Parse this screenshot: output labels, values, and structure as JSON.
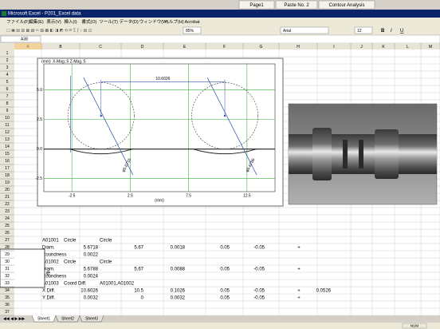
{
  "app_tabs": [
    "Page1",
    "Paste No. 2",
    "Contour Analysis"
  ],
  "window_title": "Microsoft Excel - P201_Excel data",
  "menu": [
    "ファイル(F)",
    "編集(E)",
    "表示(V)",
    "挿入(I)",
    "書式(O)",
    "ツール(T)",
    "データ(D)",
    "ウィンドウ(W)",
    "ヘルプ(H)",
    "Acrobat"
  ],
  "toolbar": {
    "zoom": "85%",
    "font": "Arial",
    "size": "12",
    "bold": "B",
    "italic": "I",
    "underline": "U"
  },
  "name_box": "A38",
  "columns": [
    "A",
    "B",
    "C",
    "D",
    "E",
    "F",
    "G",
    "H",
    "I",
    "J",
    "K",
    "L",
    "M"
  ],
  "row_numbers": [
    1,
    2,
    3,
    4,
    5,
    6,
    7,
    8,
    9,
    10,
    11,
    12,
    13,
    14,
    15,
    16,
    17,
    18,
    19,
    20,
    21,
    22,
    23,
    24,
    25,
    26,
    27,
    28,
    29,
    30,
    31,
    32,
    33,
    34,
    35,
    36,
    37
  ],
  "chart": {
    "unit_top": "(mm)",
    "magnification": "X-Mag.:5  Z-Mag.:5",
    "xlim": [
      -4.9,
      14.9
    ],
    "ylim": [
      -3.6,
      7.2
    ],
    "xticks": [
      {
        "value": -2.5,
        "label": "-2.5"
      },
      {
        "value": 2.5,
        "label": "2.5"
      },
      {
        "value": 7.5,
        "label": "7.5"
      },
      {
        "value": 12.5,
        "label": "12.5"
      }
    ],
    "yticks": [
      {
        "value": 5,
        "label": "5.0"
      },
      {
        "value": 2.5,
        "label": "2.5"
      },
      {
        "value": 0,
        "label": "0.0"
      },
      {
        "value": -2.5,
        "label": "-2.5"
      }
    ],
    "x_label": "(mm)",
    "dimension": "10.6026",
    "circle_labels": [
      "φ5.6718",
      "φ5.6788"
    ]
  },
  "table": {
    "rows": [
      [
        "A01001",
        "Circle",
        "Circle"
      ],
      [
        "Diam.",
        "5.6718",
        "5.67",
        "0.0018",
        "0.05",
        "-0.05",
        "+"
      ],
      [
        "Roundness",
        "0.0022"
      ],
      [
        "A01002",
        "Circle",
        "Circle"
      ],
      [
        "Diam.",
        "5.6788",
        "5.67",
        "0.0088",
        "0.05",
        "-0.05",
        "+"
      ],
      [
        "Roundness",
        "0.0024"
      ],
      [
        "A01003",
        "Coord Diff.",
        "A01001,A01002"
      ],
      [
        "X Diff.",
        "10.6026",
        "10.5",
        "0.1026",
        "0.05",
        "-0.05",
        "+",
        "0.0526"
      ],
      [
        "Y Diff.",
        "0.0032",
        "0",
        "0.0032",
        "0.05",
        "-0.05",
        "+"
      ]
    ]
  },
  "callout": "e",
  "sheets": [
    "Sheet1",
    "Sheet2",
    "Sheet3"
  ],
  "status": "NUM"
}
